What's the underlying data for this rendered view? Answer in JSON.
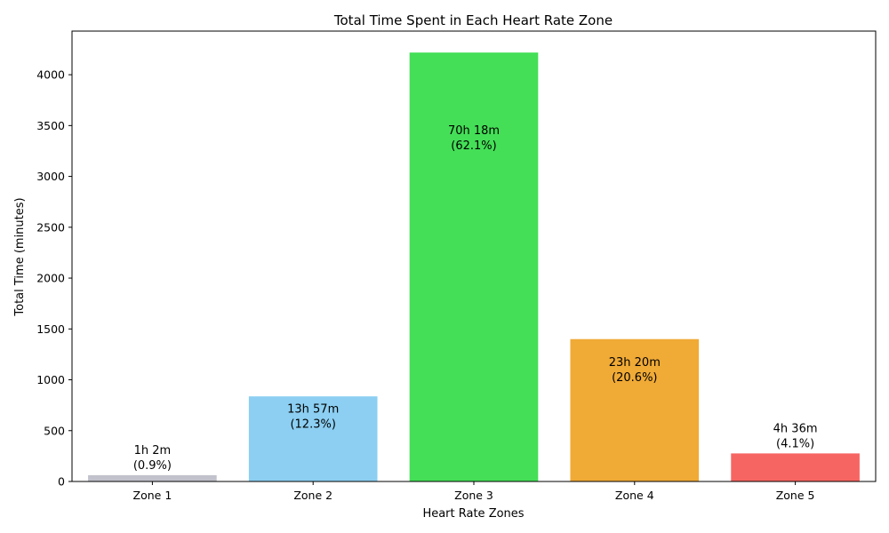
{
  "chart_data": {
    "type": "bar",
    "title": "Total Time Spent in Each Heart Rate Zone",
    "xlabel": "Heart Rate Zones",
    "ylabel": "Total Time (minutes)",
    "categories": [
      "Zone 1",
      "Zone 2",
      "Zone 3",
      "Zone 4",
      "Zone 5"
    ],
    "values": [
      62,
      837,
      4218,
      1400,
      276
    ],
    "colors": [
      "#c2c2cc",
      "#8ccff2",
      "#44df57",
      "#f0aa36",
      "#f76562"
    ],
    "bar_labels": [
      [
        "1h 2m",
        "(0.9%)"
      ],
      [
        "13h 57m",
        "(12.3%)"
      ],
      [
        "70h 18m",
        "(62.1%)"
      ],
      [
        "23h 20m",
        "(20.6%)"
      ],
      [
        "4h 36m",
        "(4.1%)"
      ]
    ],
    "yticks": [
      0,
      500,
      1000,
      1500,
      2000,
      2500,
      3000,
      3500,
      4000
    ],
    "ylim": [
      0,
      4429
    ],
    "grid": false,
    "legend": "none"
  }
}
